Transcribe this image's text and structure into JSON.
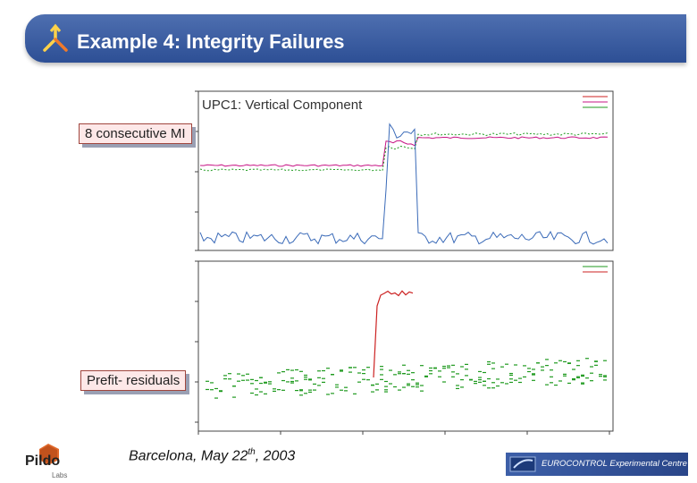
{
  "slide": {
    "title": "Example 4: Integrity Failures",
    "component_label": "UPC1: Vertical Component",
    "callout_top": "8 consecutive MI",
    "callout_bottom": "Prefit- residuals",
    "footer_prefix": "Barcelona, May 22",
    "footer_sup": "th",
    "footer_suffix": ", 2003",
    "logo_name": "Pildo",
    "logo_sub": "Labs",
    "org_label": "EUROCONTROL Experimental Centre"
  },
  "colors": {
    "title_bar": "#3a5ba0",
    "callout_bg": "#fde8e8",
    "callout_border": "#a0463e",
    "pink_series": "#c71585",
    "green_series": "#1f9a1f",
    "blue_series": "#3a6ab8",
    "red_series": "#cc2222"
  },
  "icons": [
    "triangle-logo-icon",
    "pildo-cube-icon",
    "eurocontrol-logo-icon"
  ]
}
